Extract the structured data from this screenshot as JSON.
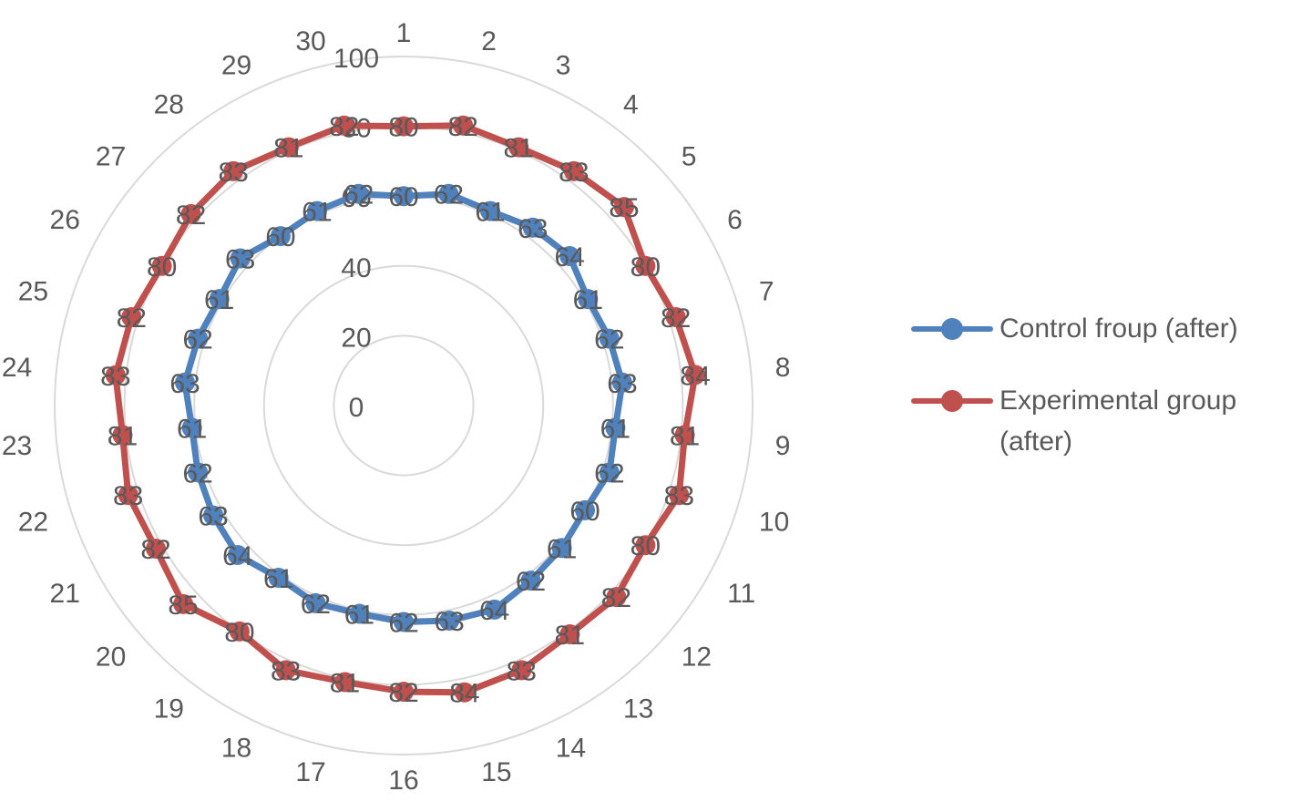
{
  "chart_data": {
    "type": "radar",
    "title": "",
    "categories": [
      "1",
      "2",
      "3",
      "4",
      "5",
      "6",
      "7",
      "8",
      "9",
      "10",
      "11",
      "12",
      "13",
      "14",
      "15",
      "16",
      "17",
      "18",
      "19",
      "20",
      "21",
      "22",
      "23",
      "24",
      "25",
      "26",
      "27",
      "28",
      "29",
      "30"
    ],
    "rlim": [
      0,
      100
    ],
    "rticks": [
      0,
      20,
      40,
      60,
      80,
      100
    ],
    "rtick_labels": [
      "0",
      "20",
      "40",
      "60",
      "80",
      "100"
    ],
    "grid": true,
    "legend_position": "right",
    "series": [
      {
        "name": "Control froup (after)",
        "color": "#4F81BD",
        "values": [
          60,
          62,
          61,
          63,
          64,
          61,
          62,
          63,
          61,
          62,
          60,
          61,
          62,
          64,
          63,
          62,
          61,
          62,
          61,
          64,
          63,
          62,
          61,
          63,
          62,
          61,
          63,
          60,
          61,
          62
        ],
        "point_labels": [
          "60",
          "62",
          "61",
          "63",
          "64",
          "61",
          "62",
          "63",
          "61",
          "62",
          "60",
          "61",
          "62",
          "64",
          "63",
          "62",
          "61",
          "62",
          "61",
          "64",
          "63",
          "62",
          "61",
          "63",
          "62",
          "61",
          "63",
          "60",
          "61",
          "62"
        ]
      },
      {
        "name": "Experimental group (after)",
        "color": "#C0504D",
        "values": [
          80,
          82,
          81,
          83,
          85,
          80,
          82,
          84,
          81,
          83,
          80,
          82,
          81,
          83,
          84,
          82,
          81,
          83,
          80,
          85,
          82,
          83,
          81,
          83,
          82,
          80,
          82,
          83,
          81,
          82
        ],
        "point_labels": [
          "80",
          "82",
          "81",
          "83",
          "85",
          "80",
          "82",
          "84",
          "81",
          "83",
          "80",
          "82",
          "81",
          "83",
          "84",
          "82",
          "81",
          "83",
          "80",
          "85",
          "82",
          "83",
          "81",
          "83",
          "82",
          "80",
          "82",
          "83",
          "81",
          "82"
        ]
      }
    ]
  }
}
